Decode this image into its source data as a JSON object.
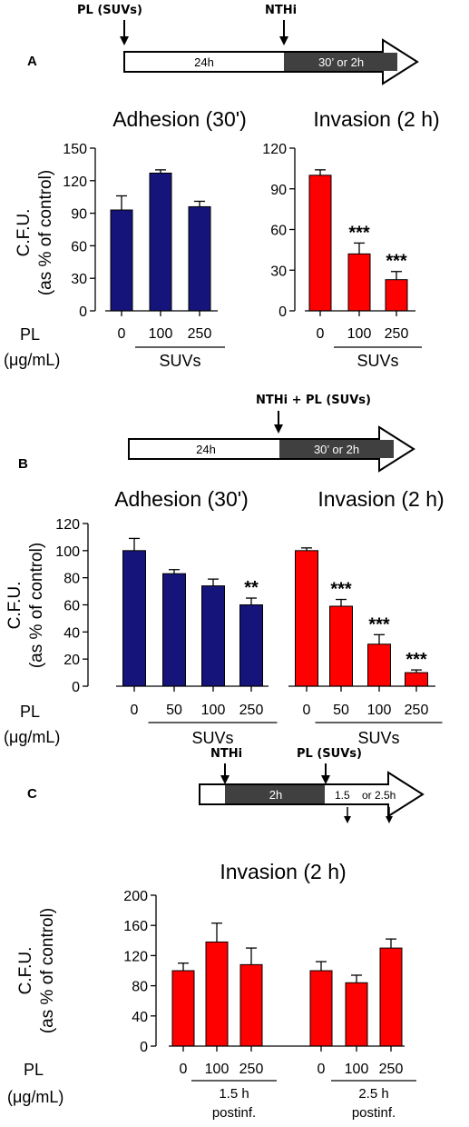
{
  "colors": {
    "adhesion": "#14147a",
    "invasion": "#ff0000",
    "timeline_dark": "#404040"
  },
  "chart_data": [
    {
      "panel": "A",
      "timeline": {
        "markers": [
          "PL (SUVs)",
          "NTHi"
        ],
        "segments": [
          "24h",
          "30’ or 2h"
        ]
      },
      "y_axis_label": [
        "C.F.U.",
        "(as % of control)"
      ],
      "x_prefix": [
        "PL",
        "(μg/mL)"
      ],
      "charts": [
        {
          "type": "bar",
          "title": "Adhesion (30')",
          "color": "adhesion",
          "categories": [
            "0",
            "100",
            "250"
          ],
          "values": [
            93,
            127,
            96
          ],
          "errors": [
            13,
            3,
            5
          ],
          "stars": [
            "",
            "",
            ""
          ],
          "ylim": [
            0,
            150
          ],
          "yticks": [
            0,
            30,
            60,
            90,
            120,
            150
          ],
          "groups": [
            {
              "label": "SUVs",
              "from": 1,
              "to": 2
            }
          ]
        },
        {
          "type": "bar",
          "title": "Invasion (2 h)",
          "color": "invasion",
          "categories": [
            "0",
            "100",
            "250"
          ],
          "values": [
            100,
            42,
            23
          ],
          "errors": [
            4,
            8,
            6
          ],
          "stars": [
            "",
            "***",
            "***"
          ],
          "ylim": [
            0,
            120
          ],
          "yticks": [
            0,
            30,
            60,
            90,
            120
          ],
          "groups": [
            {
              "label": "SUVs",
              "from": 1,
              "to": 2
            }
          ]
        }
      ]
    },
    {
      "panel": "B",
      "timeline": {
        "markers": [
          "NTHi + PL (SUVs)"
        ],
        "segments": [
          "24h",
          "30’ or 2h"
        ]
      },
      "y_axis_label": [
        "C.F.U.",
        "(as % of control)"
      ],
      "x_prefix": [
        "PL",
        "(μg/mL)"
      ],
      "ylim": [
        0,
        120
      ],
      "yticks": [
        0,
        20,
        40,
        60,
        80,
        100,
        120
      ],
      "charts": [
        {
          "type": "bar",
          "title": "Adhesion (30')",
          "color": "adhesion",
          "categories": [
            "0",
            "50",
            "100",
            "250"
          ],
          "values": [
            100,
            83,
            74,
            60
          ],
          "errors": [
            9,
            3,
            5,
            5
          ],
          "stars": [
            "",
            "",
            "",
            "**"
          ],
          "groups": [
            {
              "label": "SUVs",
              "from": 1,
              "to": 3
            }
          ]
        },
        {
          "type": "bar",
          "title": "Invasion (2 h)",
          "color": "invasion",
          "categories": [
            "0",
            "50",
            "100",
            "250"
          ],
          "values": [
            100,
            59,
            31,
            10
          ],
          "errors": [
            2,
            5,
            7,
            2
          ],
          "stars": [
            "",
            "***",
            "***",
            "***"
          ],
          "groups": [
            {
              "label": "SUVs",
              "from": 1,
              "to": 3
            }
          ]
        }
      ]
    },
    {
      "panel": "C",
      "timeline": {
        "markers": [
          "NTHi",
          "PL (SUVs)"
        ],
        "segments": [
          "2h",
          "1.5",
          "or 2.5h"
        ]
      },
      "y_axis_label": [
        "C.F.U.",
        "(as % of control)"
      ],
      "x_prefix": [
        "PL",
        "(μg/mL)"
      ],
      "charts": [
        {
          "type": "bar",
          "title": "Invasion (2 h)",
          "color": "invasion",
          "categories": [
            "0",
            "100",
            "250",
            "0",
            "100",
            "250"
          ],
          "values": [
            100,
            138,
            108,
            100,
            84,
            130
          ],
          "errors": [
            10,
            25,
            22,
            12,
            10,
            12
          ],
          "stars": [
            "",
            "",
            "",
            "",
            "",
            ""
          ],
          "ylim": [
            0,
            200
          ],
          "yticks": [
            0,
            40,
            80,
            120,
            160,
            200
          ],
          "groups": [
            {
              "label": [
                "1.5 h",
                "postinf."
              ],
              "from": 1,
              "to": 2
            },
            {
              "label": [
                "2.5 h",
                "postinf."
              ],
              "from": 4,
              "to": 5
            }
          ]
        }
      ]
    }
  ]
}
